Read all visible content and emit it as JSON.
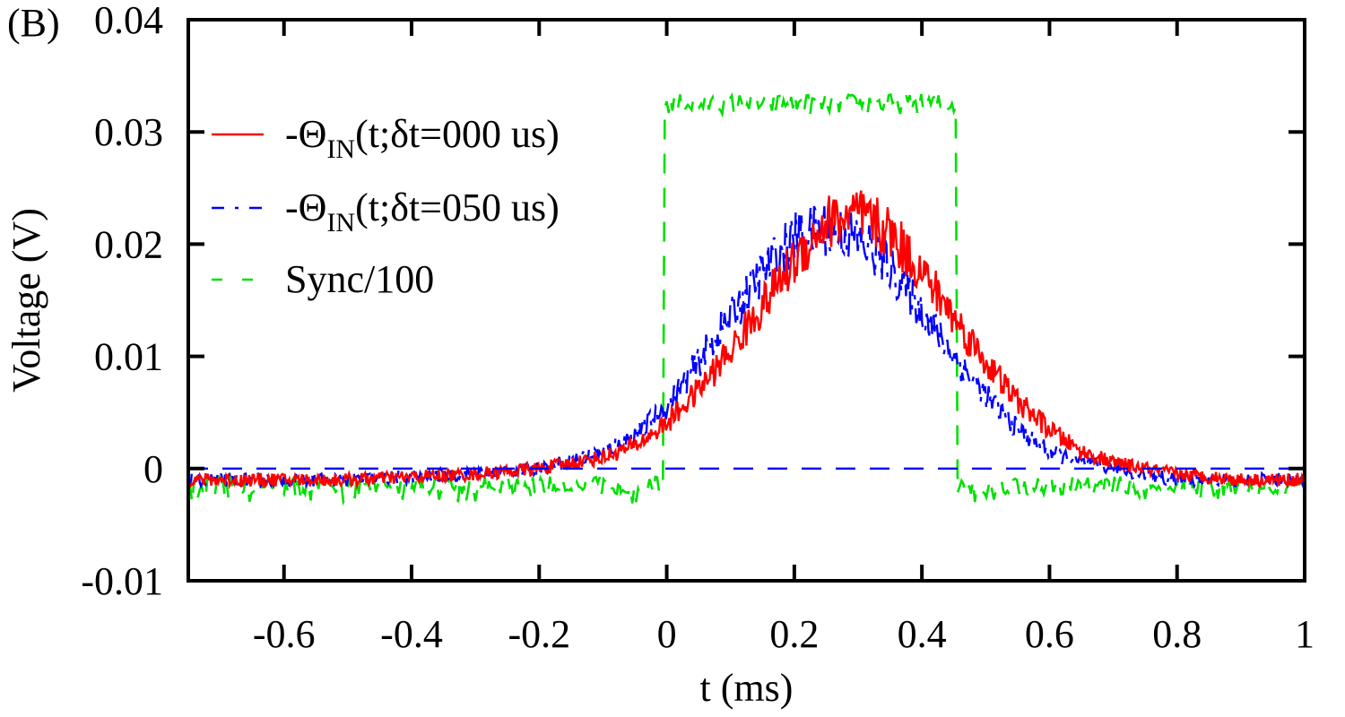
{
  "chart_data": {
    "type": "line",
    "panel_label": "(B)",
    "xlabel": "t (ms)",
    "ylabel": "Voltage (V)",
    "xlim": [
      -0.75,
      1.0
    ],
    "ylim": [
      -0.01,
      0.04
    ],
    "x_ticks": [
      -0.6,
      -0.4,
      -0.2,
      0,
      0.2,
      0.4,
      0.6,
      0.8,
      1
    ],
    "x_tick_labels": [
      "-0.6",
      "-0.4",
      "-0.2",
      "0",
      "0.2",
      "0.4",
      "0.6",
      "0.8",
      "1"
    ],
    "y_ticks": [
      -0.01,
      0,
      0.01,
      0.02,
      0.03,
      0.04
    ],
    "y_tick_labels": [
      "-0.01",
      "0",
      "0.01",
      "0.02",
      "0.03",
      "0.04"
    ],
    "legend_position": "top-left",
    "series": [
      {
        "name": "-ΘIN(t;δt=000 us)",
        "legend_prefix": "-Θ",
        "legend_sub": "IN",
        "legend_suffix": "(t;δt=000 us)",
        "color": "#ff0000",
        "style": "solid",
        "x": [
          -0.75,
          -0.5,
          -0.3,
          -0.2,
          -0.15,
          -0.1,
          -0.05,
          0.0,
          0.05,
          0.1,
          0.15,
          0.2,
          0.25,
          0.3,
          0.35,
          0.4,
          0.45,
          0.5,
          0.55,
          0.6,
          0.65,
          0.7,
          0.75,
          0.8,
          0.9,
          1.0
        ],
        "values": [
          -0.001,
          -0.001,
          -0.0005,
          0.0,
          0.0005,
          0.001,
          0.002,
          0.004,
          0.007,
          0.0105,
          0.0145,
          0.0185,
          0.022,
          0.0225,
          0.021,
          0.0175,
          0.0135,
          0.0095,
          0.006,
          0.0035,
          0.0015,
          0.0005,
          0.0,
          -0.0005,
          -0.001,
          -0.001
        ]
      },
      {
        "name": "-ΘIN(t;δt=050 us)",
        "legend_prefix": "-Θ",
        "legend_sub": "IN",
        "legend_suffix": "(t;δt=050 us)",
        "color": "#0000ff",
        "style": "dashdot",
        "x": [
          -0.75,
          -0.5,
          -0.3,
          -0.2,
          -0.15,
          -0.1,
          -0.05,
          0.0,
          0.05,
          0.1,
          0.15,
          0.2,
          0.25,
          0.3,
          0.35,
          0.4,
          0.45,
          0.5,
          0.55,
          0.6,
          0.65,
          0.7,
          0.75,
          0.8,
          0.9,
          1.0
        ],
        "values": [
          -0.001,
          -0.001,
          -0.0005,
          0.0,
          0.0007,
          0.0015,
          0.003,
          0.0055,
          0.0095,
          0.0135,
          0.0175,
          0.0205,
          0.0215,
          0.0205,
          0.018,
          0.014,
          0.01,
          0.0065,
          0.0035,
          0.0015,
          0.0005,
          0.0,
          -0.0005,
          -0.001,
          -0.001,
          -0.001
        ]
      },
      {
        "name": "Sync/100",
        "legend_prefix": "Sync/100",
        "legend_sub": "",
        "legend_suffix": "",
        "color": "#00e000",
        "style": "dashed",
        "x": [
          -0.75,
          -0.005,
          -0.004,
          0.455,
          0.456,
          1.0
        ],
        "values": [
          -0.0015,
          -0.0015,
          0.0325,
          0.0325,
          -0.0015,
          -0.0015
        ]
      }
    ],
    "reference_lines": [
      {
        "name": "zero-baseline",
        "y": 0,
        "color": "#0000ff",
        "style": "dashed"
      }
    ]
  }
}
